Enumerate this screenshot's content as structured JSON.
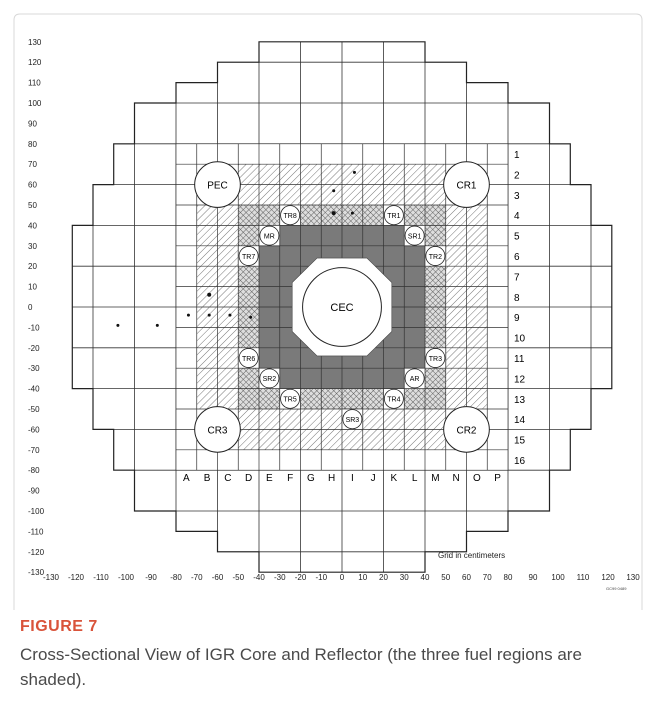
{
  "figure": {
    "x_axis_labels": [
      "-130",
      "-120",
      "-110",
      "-100",
      "-90",
      "-80",
      "-70",
      "-60",
      "-50",
      "-40",
      "-30",
      "-20",
      "-10",
      "0",
      "10",
      "20",
      "30",
      "40",
      "50",
      "60",
      "70",
      "80",
      "90",
      "100",
      "110",
      "120",
      "130"
    ],
    "y_axis_labels": [
      "130",
      "120",
      "110",
      "100",
      "90",
      "80",
      "70",
      "60",
      "50",
      "40",
      "30",
      "20",
      "10",
      "0",
      "-10",
      "-20",
      "-30",
      "-40",
      "-50",
      "-60",
      "-70",
      "-80",
      "-90",
      "-100",
      "-110",
      "-120",
      "-130"
    ],
    "column_labels": [
      "A",
      "B",
      "C",
      "D",
      "E",
      "F",
      "G",
      "H",
      "I",
      "J",
      "K",
      "L",
      "M",
      "N",
      "O",
      "P"
    ],
    "row_labels": [
      "1",
      "2",
      "3",
      "4",
      "5",
      "6",
      "7",
      "8",
      "9",
      "10",
      "11",
      "12",
      "13",
      "14",
      "15",
      "16"
    ],
    "large_channels": [
      "PEC",
      "CR1",
      "CR3",
      "CR2"
    ],
    "small_channels": [
      "TR8",
      "TR1",
      "MR",
      "SR1",
      "TR7",
      "TR2",
      "TR6",
      "TR3",
      "SR2",
      "AR",
      "TR5",
      "TR4",
      "SR3"
    ],
    "center_label": "CEC",
    "grid_note": "Grid in centimeters",
    "drawing_id": "GC99 0489"
  },
  "caption": {
    "label": "FIGURE 7",
    "text": "Cross-Sectional View of IGR Core and Reflector (the three fuel regions are shaded)."
  }
}
